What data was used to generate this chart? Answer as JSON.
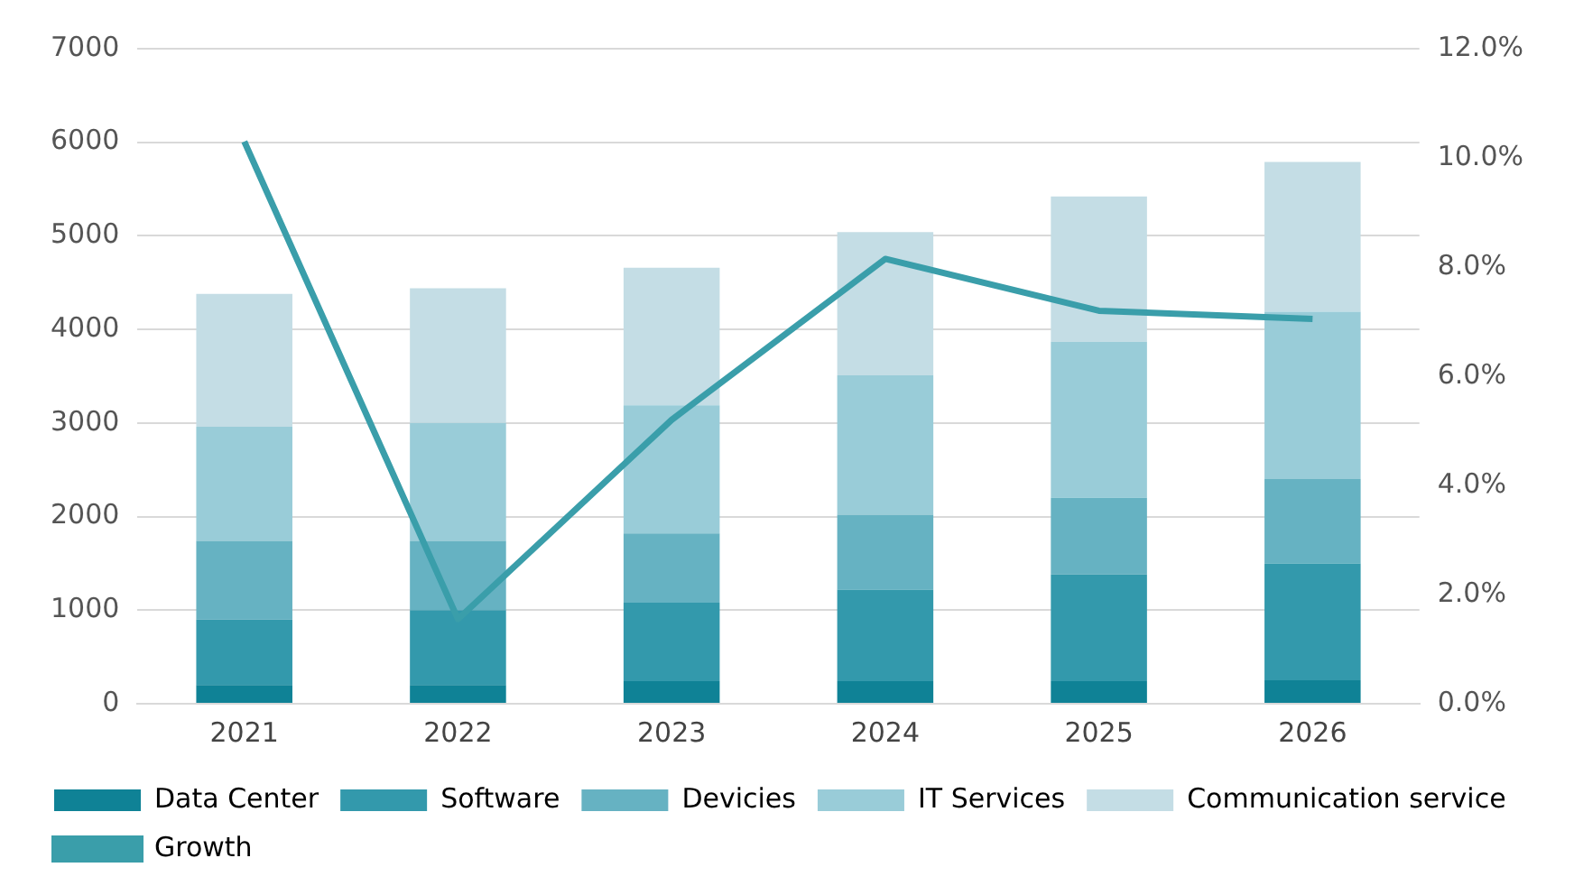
{
  "chart_data": {
    "type": "bar",
    "stacked": true,
    "categories": [
      "2021",
      "2022",
      "2023",
      "2024",
      "2025",
      "2026"
    ],
    "series": [
      {
        "name": "Data Center",
        "color": "#0f8296",
        "values": [
          200,
          200,
          240,
          240,
          240,
          250
        ]
      },
      {
        "name": "Software",
        "color": "#3399ac",
        "values": [
          700,
          800,
          840,
          980,
          1140,
          1250
        ]
      },
      {
        "name": "Devicies",
        "color": "#66b2c2",
        "values": [
          840,
          740,
          740,
          800,
          820,
          900
        ]
      },
      {
        "name": "IT Services",
        "color": "#99ccd8",
        "values": [
          1220,
          1260,
          1370,
          1490,
          1670,
          1790
        ]
      },
      {
        "name": "Communication service",
        "color": "#c4dde5",
        "values": [
          1420,
          1440,
          1470,
          1530,
          1550,
          1600
        ]
      },
      {
        "name": "Growth",
        "type": "line",
        "axis": "y2",
        "color": "#3a9eaa",
        "values": [
          10.3,
          1.55,
          5.2,
          8.15,
          7.2,
          7.05
        ]
      }
    ],
    "ylim": [
      0,
      7000
    ],
    "yticks": [
      0,
      1000,
      2000,
      3000,
      4000,
      5000,
      6000,
      7000
    ],
    "y2lim": [
      0,
      12
    ],
    "y2ticks": [
      {
        "value": 0,
        "label": "0.0%"
      },
      {
        "value": 2,
        "label": "2.0%"
      },
      {
        "value": 4,
        "label": "4.0%"
      },
      {
        "value": 6,
        "label": "6.0%"
      },
      {
        "value": 8,
        "label": "8.0%"
      },
      {
        "value": 10,
        "label": "10.0%"
      },
      {
        "value": 12,
        "label": "12.0%"
      }
    ],
    "grid": "y",
    "legend": "bottom",
    "marker": "none"
  }
}
